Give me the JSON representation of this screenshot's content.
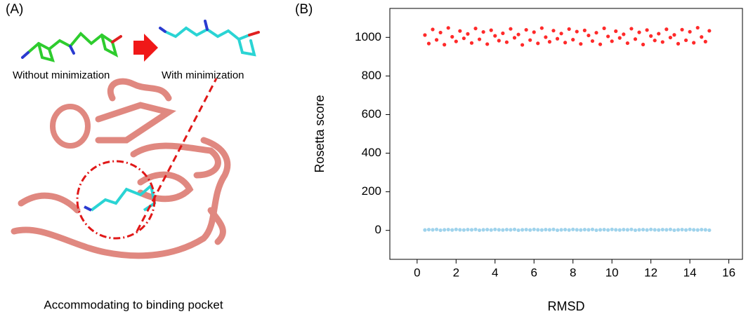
{
  "panel_a": {
    "label": "(A)",
    "left_caption": "Without minimization",
    "right_caption": "With minimization",
    "bottom_caption": "Accommodating to binding pocket"
  },
  "chart_data": {
    "type": "scatter",
    "panel_label": "(B)",
    "x_label": "RMSD",
    "y_label": "Rosetta score",
    "xlim": [
      -1.4,
      16.7
    ],
    "ylim": [
      -150,
      1150
    ],
    "xticks": [
      0,
      2,
      4,
      6,
      8,
      10,
      12,
      14,
      16
    ],
    "yticks": [
      0,
      200,
      400,
      600,
      800,
      1000
    ],
    "grid": false,
    "x": [
      0.4,
      0.6,
      0.8,
      1.0,
      1.2,
      1.4,
      1.6,
      1.8,
      2.0,
      2.2,
      2.4,
      2.6,
      2.8,
      3.0,
      3.2,
      3.4,
      3.6,
      3.8,
      4.0,
      4.2,
      4.4,
      4.6,
      4.8,
      5.0,
      5.2,
      5.4,
      5.6,
      5.8,
      6.0,
      6.2,
      6.4,
      6.6,
      6.8,
      7.0,
      7.2,
      7.4,
      7.6,
      7.8,
      8.0,
      8.2,
      8.4,
      8.6,
      8.8,
      9.0,
      9.2,
      9.4,
      9.6,
      9.8,
      10.0,
      10.2,
      10.4,
      10.6,
      10.8,
      11.0,
      11.2,
      11.4,
      11.6,
      11.8,
      12.0,
      12.2,
      12.4,
      12.6,
      12.8,
      13.0,
      13.2,
      13.4,
      13.6,
      13.8,
      14.0,
      14.2,
      14.4,
      14.6,
      14.8,
      15.0
    ],
    "series": [
      {
        "color": "#ff2a2a",
        "values": [
          1012,
          968,
          1041,
          987,
          1025,
          962,
          1049,
          1003,
          979,
          1033,
          995,
          1018,
          971,
          1046,
          990,
          1028,
          965,
          1037,
          1008,
          983,
          1021,
          975,
          1044,
          998,
          1015,
          961,
          1039,
          986,
          1027,
          969,
          1048,
          1001,
          977,
          1035,
          993,
          1020,
          973,
          1043,
          988,
          1030,
          966,
          1036,
          1010,
          981,
          1024,
          964,
          1047,
          1005,
          980,
          1032,
          997,
          1016,
          970,
          1045,
          991,
          1026,
          963,
          1038,
          1007,
          984,
          1019,
          976,
          1042,
          999,
          1013,
          967,
          1040,
          985,
          1029,
          972,
          1050,
          1002,
          978,
          1034
        ]
      },
      {
        "color": "#9fd3ec",
        "values": [
          2,
          4,
          3,
          5,
          1,
          3,
          4,
          2,
          5,
          3,
          2,
          4,
          3,
          5,
          1,
          3,
          4,
          2,
          5,
          3,
          2,
          4,
          3,
          5,
          1,
          3,
          4,
          2,
          5,
          3,
          2,
          4,
          3,
          5,
          1,
          3,
          4,
          2,
          5,
          3,
          2,
          4,
          3,
          5,
          1,
          3,
          4,
          2,
          5,
          3,
          2,
          4,
          3,
          5,
          1,
          3,
          4,
          2,
          5,
          3,
          2,
          4,
          3,
          5,
          1,
          3,
          4,
          2,
          5,
          3,
          2,
          4,
          3,
          1
        ]
      }
    ]
  }
}
